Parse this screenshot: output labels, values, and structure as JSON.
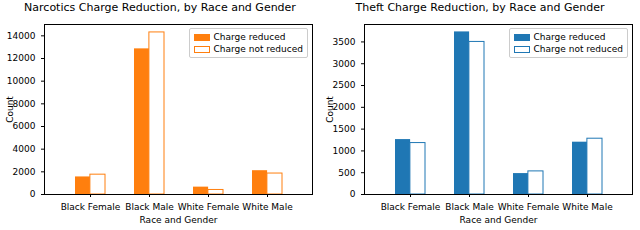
{
  "chart_data": [
    {
      "type": "bar",
      "title": "Narcotics Charge Reduction, by Race and Gender",
      "x_label": "Race and Gender",
      "y_label": "Count",
      "categories": [
        "Black Female",
        "Black Male",
        "White Female",
        "White Male"
      ],
      "series": [
        {
          "name": "Charge reduced",
          "color": "#ff7f0e",
          "marker": "filled",
          "values": [
            1550,
            12850,
            650,
            2100
          ]
        },
        {
          "name": "Charge not reduced",
          "color": "#ff7f0e",
          "marker": "hollow",
          "values": [
            1750,
            14300,
            400,
            1850
          ]
        }
      ],
      "ylim": [
        0,
        15000
      ],
      "yticks": [
        0,
        2000,
        4000,
        6000,
        8000,
        10000,
        12000,
        14000
      ],
      "legend": "upper right"
    },
    {
      "type": "bar",
      "title": "Theft Charge Reduction, by Race and Gender",
      "x_label": "Race and Gender",
      "y_label": "Count",
      "categories": [
        "Black Female",
        "Black Male",
        "White Female",
        "White Male"
      ],
      "series": [
        {
          "name": "Charge reduced",
          "color": "#1f77b4",
          "marker": "filled",
          "values": [
            1260,
            3730,
            480,
            1200
          ]
        },
        {
          "name": "Charge not reduced",
          "color": "#1f77b4",
          "marker": "hollow",
          "values": [
            1180,
            3500,
            530,
            1280
          ]
        }
      ],
      "ylim": [
        0,
        3900
      ],
      "yticks": [
        0,
        500,
        1000,
        1500,
        2000,
        2500,
        3000,
        3500
      ],
      "legend": "upper right"
    }
  ]
}
